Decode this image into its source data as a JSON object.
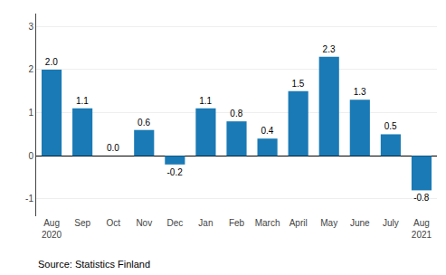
{
  "chart_data": {
    "type": "bar",
    "categories": [
      "Aug\n2020",
      "Sep",
      "Oct",
      "Nov",
      "Dec",
      "Jan",
      "Feb",
      "March",
      "April",
      "May",
      "June",
      "July",
      "Aug\n2021"
    ],
    "values": [
      2.0,
      1.1,
      0.0,
      0.6,
      -0.2,
      1.1,
      0.8,
      0.4,
      1.5,
      2.3,
      1.3,
      0.5,
      -0.8
    ],
    "value_labels": [
      "2.0",
      "1.1",
      "0.0",
      "0.6",
      "-0.2",
      "1.1",
      "0.8",
      "0.4",
      "1.5",
      "2.3",
      "1.3",
      "0.5",
      "-0.8"
    ],
    "data_labels": true,
    "color": "#1a7ab5",
    "ylim": [
      -1.4,
      3.3
    ],
    "yticks": [
      -1,
      0,
      1,
      2,
      3
    ],
    "grid": true,
    "annotations": [
      "Source: Statistics Finland"
    ]
  }
}
